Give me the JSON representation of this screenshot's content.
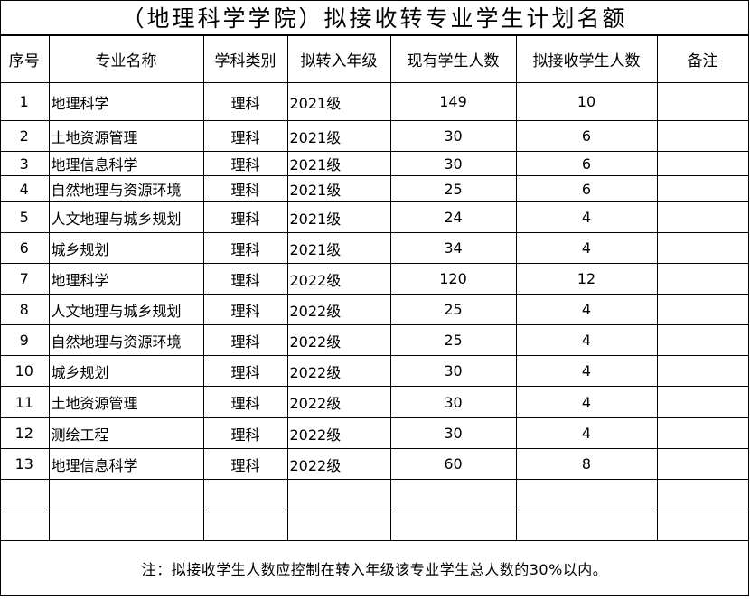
{
  "title": "（地理科学学院）拟接收转专业学生计划名额",
  "headers": [
    "序号",
    "专业名称",
    "学科类别",
    "拟转入年级",
    "现有学生人数",
    "拟接收学生人数",
    "备注"
  ],
  "rows": [
    {
      "no": "1",
      "major": "地理科学",
      "category": "理科",
      "grade": "2021级",
      "current": "149",
      "planned": "10",
      "remark": ""
    },
    {
      "no": "2",
      "major": "土地资源管理",
      "category": "理科",
      "grade": "2021级",
      "current": "30",
      "planned": "6",
      "remark": ""
    },
    {
      "no": "3",
      "major": "地理信息科学",
      "category": "理科",
      "grade": "2021级",
      "current": "30",
      "planned": "6",
      "remark": ""
    },
    {
      "no": "4",
      "major": "自然地理与资源环境",
      "category": "理科",
      "grade": "2021级",
      "current": "25",
      "planned": "6",
      "remark": ""
    },
    {
      "no": "5",
      "major": "人文地理与城乡规划",
      "category": "理科",
      "grade": "2021级",
      "current": "24",
      "planned": "4",
      "remark": ""
    },
    {
      "no": "6",
      "major": "城乡规划",
      "category": "理科",
      "grade": "2021级",
      "current": "34",
      "planned": "4",
      "remark": ""
    },
    {
      "no": "7",
      "major": "地理科学",
      "category": "理科",
      "grade": "2022级",
      "current": "120",
      "planned": "12",
      "remark": ""
    },
    {
      "no": "8",
      "major": "人文地理与城乡规划",
      "category": "理科",
      "grade": "2022级",
      "current": "25",
      "planned": "4",
      "remark": ""
    },
    {
      "no": "9",
      "major": "自然地理与资源环境",
      "category": "理科",
      "grade": "2022级",
      "current": "25",
      "planned": "4",
      "remark": ""
    },
    {
      "no": "10",
      "major": "城乡规划",
      "category": "理科",
      "grade": "2022级",
      "current": "30",
      "planned": "4",
      "remark": ""
    },
    {
      "no": "11",
      "major": "土地资源管理",
      "category": "理科",
      "grade": "2022级",
      "current": "30",
      "planned": "4",
      "remark": ""
    },
    {
      "no": "12",
      "major": "测绘工程",
      "category": "理科",
      "grade": "2022级",
      "current": "30",
      "planned": "4",
      "remark": ""
    },
    {
      "no": "13",
      "major": "地理信息科学",
      "category": "理科",
      "grade": "2022级",
      "current": "60",
      "planned": "8",
      "remark": ""
    },
    {
      "no": "",
      "major": "",
      "category": "",
      "grade": "",
      "current": "",
      "planned": "",
      "remark": ""
    },
    {
      "no": "",
      "major": "",
      "category": "",
      "grade": "",
      "current": "",
      "planned": "",
      "remark": ""
    }
  ],
  "note": "注：拟接收学生人数应控制在转入年级该专业学生总人数的30%以内。"
}
